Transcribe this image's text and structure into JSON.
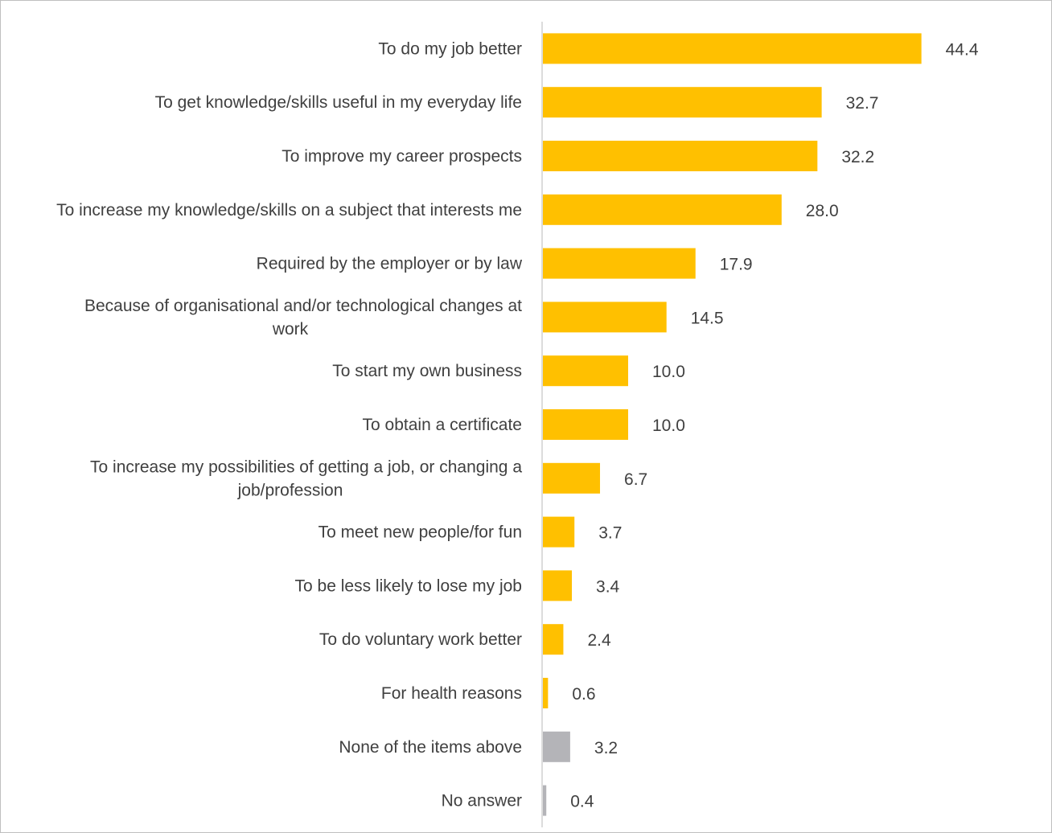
{
  "chart_data": {
    "type": "bar",
    "orientation": "horizontal",
    "title": "",
    "xlabel": "",
    "ylabel": "",
    "xlim": [
      0,
      50
    ],
    "grid": false,
    "legend": "none",
    "categories": [
      "To do my job better",
      "To get knowledge/skills useful in my everyday life",
      "To improve my career prospects",
      "To increase my knowledge/skills on a subject that interests me",
      "Required by the employer or by law",
      "Because of organisational and/or technological changes at work",
      "To start my own business",
      "To obtain a certificate",
      "To increase my possibilities of getting a job, or changing a job/profession",
      "To meet new people/for fun",
      "To be less likely to lose my job",
      "To do voluntary work better",
      "For health reasons",
      "None of the items above",
      "No answer"
    ],
    "category_lines": [
      [
        "To do my job better"
      ],
      [
        "To get knowledge/skills useful in my everyday life"
      ],
      [
        "To improve my career prospects"
      ],
      [
        "To increase my knowledge/skills on a subject that interests me"
      ],
      [
        "Required by the employer or by law"
      ],
      [
        "Because of organisational and/or technological changes at",
        "work"
      ],
      [
        "To start my own business"
      ],
      [
        "To obtain a certificate"
      ],
      [
        "To increase my possibilities of getting a job, or changing a",
        "job/profession"
      ],
      [
        "To meet new people/for fun"
      ],
      [
        "To be less likely to lose my job"
      ],
      [
        "To do voluntary work better"
      ],
      [
        "For health reasons"
      ],
      [
        "None of the items above"
      ],
      [
        "No answer"
      ]
    ],
    "values": [
      44.4,
      32.7,
      32.2,
      28.0,
      17.9,
      14.5,
      10.0,
      10.0,
      6.7,
      3.7,
      3.4,
      2.4,
      0.6,
      3.2,
      0.4
    ],
    "value_labels": [
      "44.4",
      "32.7",
      "32.2",
      "28.0",
      "17.9",
      "14.5",
      "10.0",
      "10.0",
      "6.7",
      "3.7",
      "3.4",
      "2.4",
      "0.6",
      "3.2",
      "0.4"
    ],
    "colors": [
      "#FFC000",
      "#FFC000",
      "#FFC000",
      "#FFC000",
      "#FFC000",
      "#FFC000",
      "#FFC000",
      "#FFC000",
      "#FFC000",
      "#FFC000",
      "#FFC000",
      "#FFC000",
      "#FFC000",
      "#B4B4B8",
      "#B4B4B8"
    ]
  }
}
